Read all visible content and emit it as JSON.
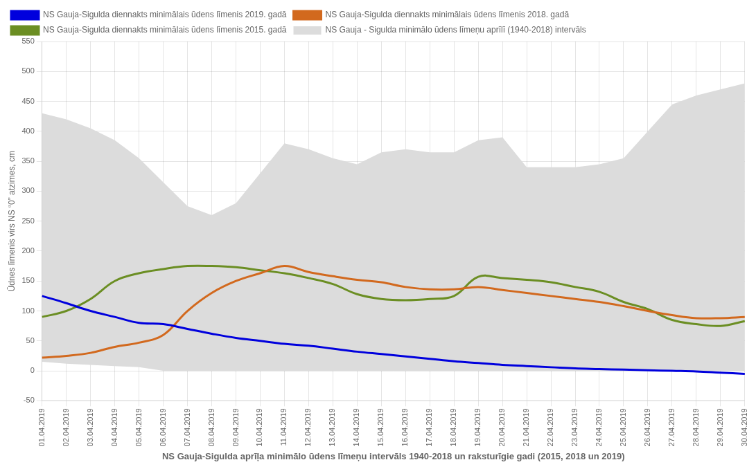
{
  "chart_data": {
    "type": "line",
    "xlabel": "NS Gauja-Sigulda aprīļa minimālo ūdens līmeņu intervāls 1940-2018 un raksturīgie gadi (2015, 2018 un 2019)",
    "ylabel": "Ūdnes līmenis virs NS “0” atzimes, cm",
    "categories": [
      "01.04.2019",
      "02.04.2019",
      "03.04.2019",
      "04.04.2019",
      "05.04.2019",
      "06.04.2019",
      "07.04.2019",
      "08.04.2019",
      "09.04.2019",
      "10.04.2019",
      "11.04.2019",
      "12.04.2019",
      "13.04.2019",
      "14.04.2019",
      "15.04.2019",
      "16.04.2019",
      "17.04.2019",
      "18.04.2019",
      "19.04.2019",
      "20.04.2019",
      "21.04.2019",
      "22.04.2019",
      "23.04.2019",
      "24.04.2019",
      "25.04.2019",
      "26.04.2019",
      "27.04.2019",
      "28.04.2019",
      "29.04.2019",
      "30.04.2019"
    ],
    "series": [
      {
        "name": "NS Gauja - Sigulda minimālo ūdens līmeņu aprīlī (1940-2018) intervāls",
        "type": "band",
        "color": "#dcdcdc",
        "upper": [
          430,
          420,
          405,
          385,
          355,
          315,
          275,
          260,
          280,
          330,
          380,
          370,
          355,
          345,
          365,
          370,
          365,
          365,
          385,
          390,
          340,
          340,
          340,
          345,
          355,
          400,
          445,
          460,
          470,
          480
        ],
        "lower": [
          15,
          12,
          10,
          8,
          6,
          0,
          0,
          0,
          0,
          0,
          0,
          0,
          0,
          0,
          0,
          0,
          0,
          0,
          0,
          0,
          0,
          0,
          0,
          0,
          0,
          0,
          0,
          0,
          0,
          0
        ]
      },
      {
        "name": "NS Gauja-Sigulda diennakts minimālais ūdens līmenis 2019. gadā",
        "type": "line",
        "color": "#0000dd",
        "values": [
          125,
          113,
          100,
          90,
          80,
          78,
          70,
          62,
          55,
          50,
          45,
          42,
          37,
          32,
          28,
          24,
          20,
          16,
          13,
          10,
          8,
          6,
          4,
          3,
          2,
          1,
          0,
          -1,
          -3,
          -5
        ]
      },
      {
        "name": "NS Gauja-Sigulda diennakts minimālais ūdens līmenis 2018. gadā",
        "type": "line",
        "color": "#d2691e",
        "values": [
          22,
          25,
          30,
          40,
          47,
          60,
          100,
          130,
          150,
          163,
          175,
          165,
          158,
          152,
          148,
          140,
          136,
          136,
          140,
          135,
          130,
          125,
          120,
          115,
          108,
          100,
          93,
          88,
          88,
          90
        ]
      },
      {
        "name": "NS Gauja-Sigulda diennakts minimālais ūdens līmenis 2015. gadā",
        "type": "line",
        "color": "#6b8e23",
        "values": [
          90,
          100,
          120,
          150,
          163,
          170,
          175,
          175,
          173,
          168,
          163,
          155,
          145,
          128,
          120,
          118,
          120,
          125,
          157,
          155,
          152,
          148,
          140,
          132,
          115,
          103,
          85,
          78,
          75,
          83
        ]
      }
    ],
    "ylim": [
      -50,
      550
    ],
    "yticks": [
      -50,
      0,
      50,
      100,
      150,
      200,
      250,
      300,
      350,
      400,
      450,
      500,
      550
    ],
    "grid": true,
    "legend": "top"
  }
}
